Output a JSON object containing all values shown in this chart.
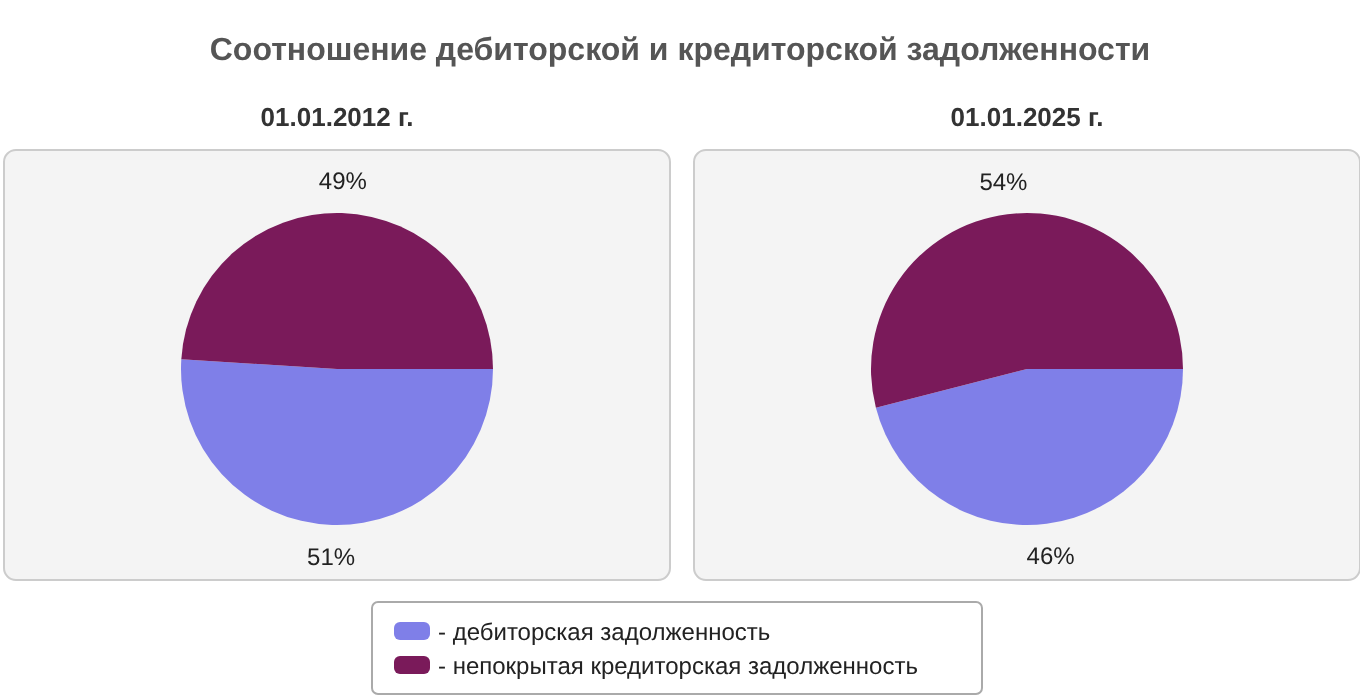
{
  "chart_data": [
    {
      "type": "pie",
      "title": "01.01.2012 г.",
      "annotations": [
        "Соотношение дебиторской и кредиторской задолженности"
      ],
      "categories": [
        "- дебиторская задолженность",
        "- непокрытая кредиторская задолженность"
      ],
      "values": [
        51,
        49
      ],
      "colors": [
        "#7f7fe8",
        "#7a1a5a"
      ],
      "value_labels": [
        "51%",
        "49%"
      ],
      "legend": "bottom"
    },
    {
      "type": "pie",
      "title": "01.01.2025 г.",
      "values": [
        46,
        54
      ],
      "colors": [
        "#7f7fe8",
        "#7a1a5a"
      ],
      "value_labels": [
        "46%",
        "54%"
      ]
    }
  ]
}
